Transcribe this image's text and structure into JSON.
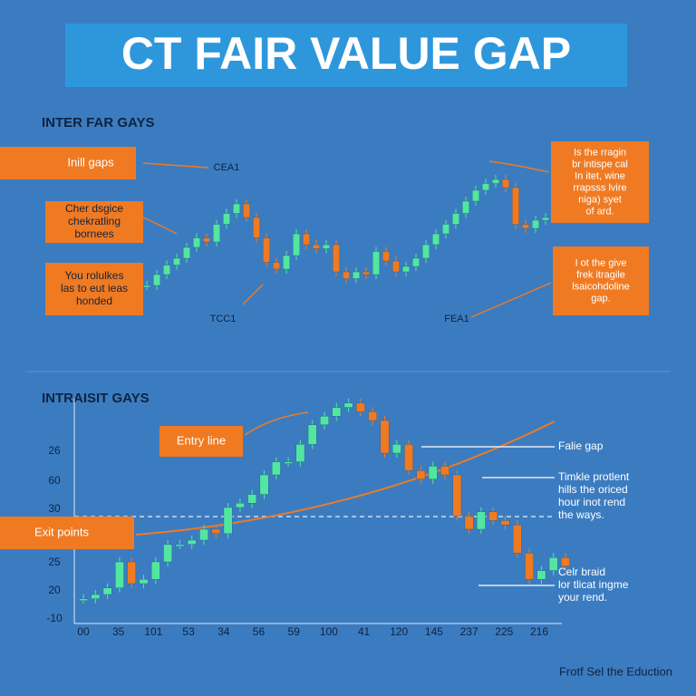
{
  "title": "CT FAIR VALUE GAP",
  "up_color": "#52e6a0",
  "down_color": "#f07a22",
  "top_panel": {
    "heading": "INTER FAR GAYS",
    "closes": [
      10,
      18,
      25,
      30,
      38,
      45,
      42,
      55,
      63,
      70,
      60,
      45,
      27,
      22,
      32,
      48,
      40,
      37,
      40,
      20,
      15,
      20,
      18,
      35,
      28,
      20,
      24,
      30,
      40,
      48,
      55,
      63,
      72,
      80,
      85,
      88,
      82,
      55,
      52,
      58,
      60
    ],
    "boxes": [
      {
        "lines": [
          "Inill gaps"
        ]
      },
      {
        "lines": [
          "Cher dsgice",
          "chekratling",
          "bornees"
        ]
      },
      {
        "lines": [
          "You rolulkes",
          "las to eut ieas",
          "honded"
        ]
      },
      {
        "lines": [
          "Is the rragin",
          "br intispe cal",
          "In itet, wine",
          "rrapsss lvire",
          "niga) syet",
          "of ard."
        ]
      },
      {
        "lines": [
          "I ot the give",
          "frek itragile",
          "lsaicohdoline",
          "gap."
        ]
      }
    ],
    "labels": [
      "CEA1",
      "TCC1",
      "FEA1"
    ]
  },
  "bottom_panel": {
    "heading": "INTRAISIT GAYS",
    "closes": [
      8,
      10,
      13,
      25,
      15,
      17,
      25,
      33,
      33,
      35,
      40,
      38,
      50,
      52,
      56,
      65,
      71,
      71,
      79,
      88,
      92,
      96,
      98,
      94,
      90,
      75,
      79,
      67,
      63,
      69,
      65,
      46,
      40,
      48,
      44,
      42,
      29,
      17,
      21,
      27,
      23
    ],
    "ytick_labels": [
      "26",
      "60",
      "30",
      "25",
      "20",
      "-10"
    ],
    "xtick_labels": [
      "00",
      "35",
      "101",
      "53",
      "34",
      "56",
      "59",
      "100",
      "41",
      "120",
      "145",
      "237",
      "225",
      "216"
    ],
    "boxes": [
      {
        "lines": [
          "Entry line"
        ]
      },
      {
        "lines": [
          "Exit points"
        ]
      }
    ],
    "notes": [
      {
        "lines": [
          "Falie gap"
        ]
      },
      {
        "lines": [
          "Timkle protlent",
          "hills the oriced",
          "hour inot rend",
          "the ways."
        ]
      },
      {
        "lines": [
          "Celr braid",
          "lor tlicat ingme",
          "your rend."
        ]
      }
    ]
  },
  "footer": "Frotf Sel the Eduction"
}
